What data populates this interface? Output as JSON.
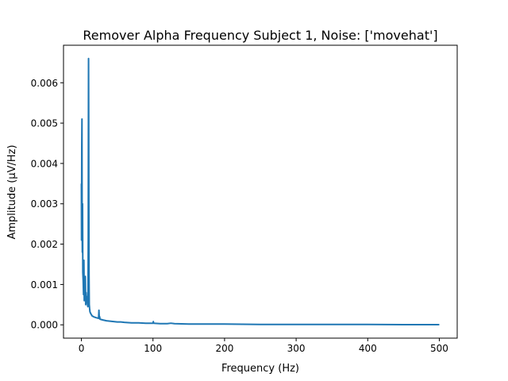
{
  "chart_data": {
    "type": "line",
    "title": "Remover Alpha Frequency Subject 1, Noise: ['movehat']",
    "xlabel": "Frequency (Hz)",
    "ylabel": "Amplitude (μV/Hz)",
    "xlim": [
      -25,
      525
    ],
    "ylim": [
      -0.00033,
      0.00693
    ],
    "xticks": [
      0,
      100,
      200,
      300,
      400,
      500
    ],
    "xtick_labels": [
      "0",
      "100",
      "200",
      "300",
      "400",
      "500"
    ],
    "yticks": [
      0.0,
      0.001,
      0.002,
      0.003,
      0.004,
      0.005,
      0.006
    ],
    "ytick_labels": [
      "0.000",
      "0.001",
      "0.002",
      "0.003",
      "0.004",
      "0.005",
      "0.006"
    ],
    "grid": false,
    "legend": "none",
    "series": [
      {
        "color": "#1f77b4",
        "x": [
          0,
          0.2,
          0.5,
          0.8,
          1.0,
          1.3,
          1.6,
          2.0,
          2.5,
          3.0,
          3.5,
          4.0,
          4.5,
          5.0,
          5.5,
          6.0,
          6.5,
          7.0,
          7.5,
          8.0,
          8.5,
          9.0,
          9.3,
          9.6,
          9.8,
          10.0,
          10.2,
          10.4,
          10.7,
          11.0,
          11.5,
          12.0,
          13.0,
          14.0,
          15.0,
          17.0,
          20.0,
          22.0,
          24.0,
          24.5,
          25.0,
          25.5,
          26.0,
          28.0,
          30.0,
          35.0,
          40.0,
          45.0,
          50.0,
          55.0,
          60.0,
          70.0,
          80.0,
          90.0,
          100.0,
          100.5,
          101.0,
          110.0,
          120.0,
          125.0,
          130.0,
          150.0,
          200.0,
          250.0,
          300.0,
          350.0,
          400.0,
          450.0,
          500.0
        ],
        "y": [
          0.0035,
          0.0021,
          0.0044,
          0.0051,
          0.0027,
          0.0018,
          0.003,
          0.0013,
          0.0011,
          0.00075,
          0.0016,
          0.0006,
          0.001,
          0.00065,
          0.0012,
          0.0005,
          0.0008,
          0.00055,
          0.0007,
          0.0006,
          0.0005,
          0.00045,
          0.0009,
          0.0022,
          0.0048,
          0.0066,
          0.0052,
          0.0031,
          0.0012,
          0.0005,
          0.0004,
          0.00032,
          0.00028,
          0.00025,
          0.00022,
          0.0002,
          0.00018,
          0.00017,
          0.00016,
          0.00036,
          0.00016,
          0.0002,
          0.00014,
          0.00013,
          0.00012,
          0.0001,
          9e-05,
          8e-05,
          7e-05,
          7e-05,
          6e-05,
          5e-05,
          5e-05,
          4e-05,
          4e-05,
          8e-05,
          4e-05,
          3e-05,
          3e-05,
          4e-05,
          3e-05,
          2e-05,
          2e-05,
          1e-05,
          1e-05,
          1e-05,
          1e-05,
          5e-06,
          5e-06
        ]
      }
    ]
  }
}
